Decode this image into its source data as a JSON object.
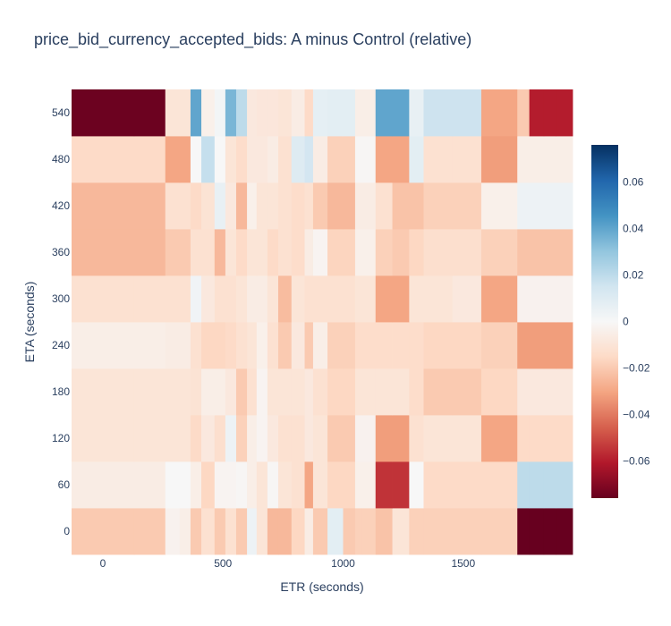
{
  "chart_data": {
    "type": "heatmap",
    "title": "price_bid_currency_accepted_bids: A minus Control (relative)",
    "xlabel": "ETR (seconds)",
    "ylabel": "ETA (seconds)",
    "x_edges": [
      -130,
      130,
      260,
      320,
      365,
      410,
      465,
      510,
      555,
      600,
      640,
      685,
      730,
      785,
      840,
      875,
      935,
      1000,
      1050,
      1080,
      1135,
      1205,
      1275,
      1335,
      1455,
      1575,
      1725,
      1775,
      1835,
      1885,
      1955
    ],
    "y_edges": [
      -30,
      30,
      90,
      150,
      210,
      270,
      330,
      390,
      450,
      510,
      570
    ],
    "x_tick_values": [
      0,
      500,
      1000,
      1500
    ],
    "x_tick_labels": [
      "0",
      "500",
      "1000",
      "1500"
    ],
    "y_tick_values": [
      0,
      60,
      120,
      180,
      240,
      300,
      360,
      420,
      480,
      540
    ],
    "y_tick_labels": [
      "0",
      "60",
      "120",
      "180",
      "240",
      "300",
      "360",
      "420",
      "480",
      "540"
    ],
    "colorscale": [
      [
        0.0,
        "#67001f"
      ],
      [
        0.1,
        "#b2182b"
      ],
      [
        0.2,
        "#d6604d"
      ],
      [
        0.3,
        "#f4a582"
      ],
      [
        0.4,
        "#fddbc7"
      ],
      [
        0.5,
        "#f7f7f7"
      ],
      [
        0.6,
        "#d1e5f0"
      ],
      [
        0.7,
        "#92c5de"
      ],
      [
        0.8,
        "#4393c3"
      ],
      [
        0.9,
        "#2166ac"
      ],
      [
        1.0,
        "#053061"
      ]
    ],
    "zmin": -0.076,
    "zmax": 0.076,
    "colorbar_ticks": [
      0.06,
      0.04,
      0.02,
      0,
      -0.02,
      -0.04,
      -0.06
    ],
    "colorbar_tick_labels": [
      "0.06",
      "0.04",
      "0.02",
      "0",
      "−0.02",
      "−0.04",
      "−0.06"
    ],
    "z": [
      [
        -0.02,
        -0.02,
        -0.003,
        -0.005,
        -0.02,
        -0.012,
        -0.02,
        -0.012,
        -0.02,
        0.004,
        -0.01,
        -0.025,
        -0.025,
        -0.016,
        -0.006,
        -0.02,
        0.008,
        -0.02,
        -0.018,
        -0.018,
        -0.022,
        -0.01,
        -0.018,
        -0.018,
        -0.018,
        -0.018,
        -0.076,
        -0.076,
        -0.076,
        -0.076
      ],
      [
        -0.006,
        -0.006,
        0.0,
        0.0,
        -0.005,
        -0.016,
        -0.002,
        -0.002,
        -0.001,
        -0.005,
        -0.01,
        -0.001,
        -0.01,
        -0.012,
        -0.03,
        -0.01,
        -0.016,
        -0.016,
        -0.004,
        -0.004,
        -0.055,
        -0.055,
        0.0,
        -0.015,
        -0.015,
        -0.015,
        0.02,
        0.02,
        0.02,
        0.02
      ],
      [
        -0.01,
        -0.01,
        -0.01,
        -0.01,
        -0.015,
        -0.008,
        -0.013,
        0.004,
        -0.018,
        -0.005,
        -0.002,
        -0.008,
        -0.012,
        -0.012,
        -0.008,
        -0.01,
        -0.02,
        -0.02,
        -0.003,
        -0.003,
        -0.032,
        -0.032,
        -0.012,
        -0.01,
        -0.01,
        -0.03,
        -0.015,
        -0.015,
        -0.015,
        -0.015
      ],
      [
        -0.01,
        -0.01,
        -0.01,
        -0.01,
        -0.011,
        -0.005,
        -0.005,
        -0.008,
        -0.02,
        -0.012,
        -0.002,
        -0.01,
        -0.01,
        -0.01,
        -0.008,
        -0.012,
        -0.016,
        -0.016,
        -0.01,
        -0.01,
        -0.01,
        -0.01,
        -0.014,
        -0.02,
        -0.02,
        -0.016,
        -0.008,
        -0.008,
        -0.008,
        -0.008
      ],
      [
        -0.005,
        -0.005,
        -0.006,
        -0.006,
        -0.012,
        -0.016,
        -0.016,
        -0.015,
        -0.012,
        -0.01,
        -0.004,
        -0.012,
        -0.02,
        -0.008,
        -0.02,
        -0.005,
        -0.018,
        -0.018,
        -0.014,
        -0.014,
        -0.014,
        -0.014,
        -0.014,
        -0.016,
        -0.016,
        -0.018,
        -0.032,
        -0.032,
        -0.032,
        -0.032
      ],
      [
        -0.012,
        -0.012,
        -0.012,
        -0.012,
        0.003,
        -0.008,
        -0.012,
        -0.012,
        -0.01,
        -0.006,
        -0.006,
        -0.01,
        -0.024,
        -0.01,
        -0.012,
        -0.012,
        -0.012,
        -0.012,
        -0.01,
        -0.01,
        -0.03,
        -0.03,
        -0.01,
        -0.01,
        -0.008,
        -0.03,
        -0.003,
        -0.003,
        -0.003,
        -0.003
      ],
      [
        -0.025,
        -0.025,
        -0.02,
        -0.02,
        -0.012,
        -0.012,
        -0.025,
        -0.01,
        -0.015,
        -0.01,
        -0.01,
        -0.015,
        -0.012,
        -0.014,
        -0.006,
        -0.002,
        -0.017,
        -0.017,
        -0.004,
        -0.004,
        -0.018,
        -0.02,
        -0.016,
        -0.013,
        -0.013,
        -0.018,
        -0.022,
        -0.022,
        -0.022,
        -0.022
      ],
      [
        -0.025,
        -0.025,
        -0.012,
        -0.012,
        -0.015,
        -0.011,
        0.006,
        -0.008,
        -0.025,
        -0.004,
        -0.01,
        -0.01,
        -0.012,
        -0.014,
        -0.012,
        -0.02,
        -0.025,
        -0.025,
        -0.006,
        -0.006,
        -0.012,
        -0.022,
        -0.022,
        -0.018,
        -0.018,
        -0.004,
        0.004,
        0.004,
        0.004,
        0.004
      ],
      [
        -0.015,
        -0.015,
        -0.03,
        -0.03,
        0.0,
        0.018,
        0.0,
        -0.01,
        -0.014,
        -0.008,
        -0.008,
        -0.006,
        -0.012,
        0.01,
        0.014,
        -0.006,
        -0.018,
        -0.018,
        -0.001,
        -0.001,
        -0.03,
        -0.03,
        0.008,
        -0.012,
        -0.012,
        -0.032,
        -0.005,
        -0.005,
        -0.005,
        -0.005
      ],
      [
        -0.075,
        -0.075,
        -0.01,
        -0.01,
        0.04,
        -0.004,
        0.002,
        0.035,
        0.02,
        -0.008,
        -0.009,
        -0.009,
        -0.01,
        -0.006,
        -0.015,
        0.007,
        0.008,
        0.008,
        -0.005,
        -0.005,
        0.04,
        0.04,
        0.006,
        0.016,
        0.016,
        -0.03,
        -0.02,
        -0.06,
        -0.06,
        -0.06
      ]
    ]
  }
}
